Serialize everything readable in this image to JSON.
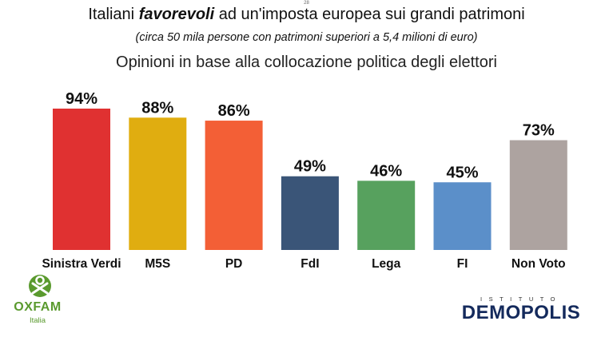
{
  "page_number": "28",
  "title": {
    "before": "Italiani ",
    "emphasis": "favorevoli",
    "after": " ad un'imposta europea sui grandi patrimoni"
  },
  "subtitle": "(circa 50 mila persone con patrimoni superiori a 5,4 milioni di euro)",
  "chart_heading": "Opinioni in base alla collocazione politica degli elettori",
  "chart_data": {
    "type": "bar",
    "title": "Italiani favorevoli ad un'imposta europea sui grandi patrimoni",
    "subtitle": "Opinioni in base alla collocazione politica degli elettori",
    "categories": [
      "Sinistra Verdi",
      "M5S",
      "PD",
      "FdI",
      "Lega",
      "FI",
      "Non Voto"
    ],
    "values": [
      94,
      88,
      86,
      49,
      46,
      45,
      73
    ],
    "value_labels": [
      "94%",
      "88%",
      "86%",
      "49%",
      "46%",
      "45%",
      "73%"
    ],
    "colors": [
      "#e03131",
      "#e0ad10",
      "#f35f36",
      "#3a5578",
      "#57a15e",
      "#5b8fc9",
      "#ada3a0"
    ],
    "ylim": [
      0,
      100
    ],
    "grid": false,
    "legend": "none"
  },
  "logos": {
    "oxfam": {
      "name": "OXFAM",
      "sub": "Italia",
      "color": "#5a9a2e"
    },
    "demopolis": {
      "small": "ISTITUTO",
      "name": "DEMOPOLIS",
      "color": "#142a5c"
    }
  }
}
